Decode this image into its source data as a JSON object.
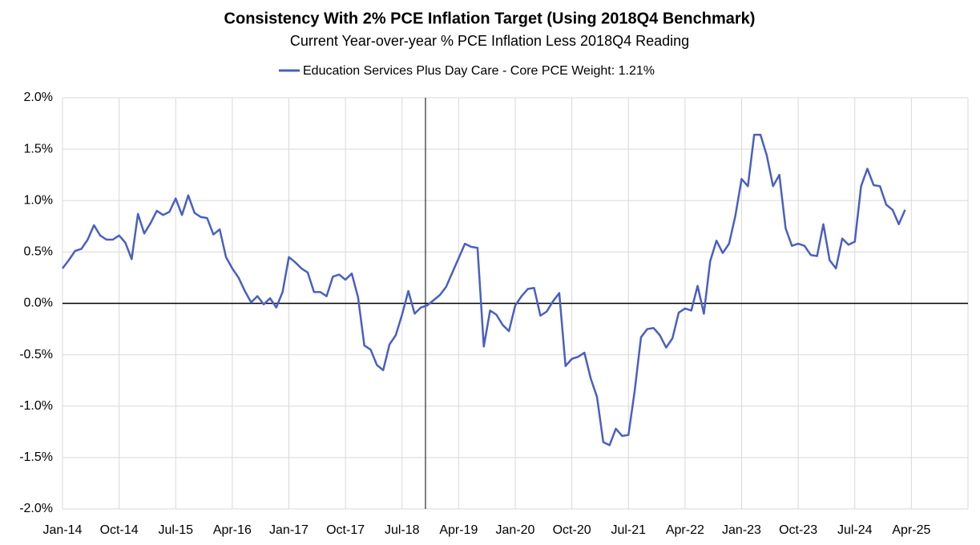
{
  "chart_data": {
    "type": "line",
    "title": "Consistency With 2% PCE Inflation Target (Using 2018Q4 Benchmark)",
    "subtitle": "Current Year-over-year % PCE Inflation Less 2018Q4 Reading",
    "categories": [
      "Jan-14",
      null,
      null,
      null,
      null,
      null,
      null,
      null,
      null,
      "Oct-14",
      null,
      null,
      null,
      null,
      null,
      null,
      null,
      null,
      "Jul-15",
      null,
      null,
      null,
      null,
      null,
      null,
      null,
      null,
      "Apr-16",
      null,
      null,
      null,
      null,
      null,
      null,
      null,
      null,
      "Jan-17",
      null,
      null,
      null,
      null,
      null,
      null,
      null,
      null,
      "Oct-17",
      null,
      null,
      null,
      null,
      null,
      null,
      null,
      null,
      "Jul-18",
      null,
      null,
      null,
      null,
      null,
      null,
      null,
      null,
      "Apr-19",
      null,
      null,
      null,
      null,
      null,
      null,
      null,
      null,
      "Jan-20",
      null,
      null,
      null,
      null,
      null,
      null,
      null,
      null,
      "Oct-20",
      null,
      null,
      null,
      null,
      null,
      null,
      null,
      null,
      "Jul-21",
      null,
      null,
      null,
      null,
      null,
      null,
      null,
      null,
      "Apr-22",
      null,
      null,
      null,
      null,
      null,
      null,
      null,
      null,
      "Jan-23",
      null,
      null,
      null,
      null,
      null,
      null,
      null,
      null,
      "Oct-23",
      null,
      null,
      null,
      null,
      null,
      null,
      null,
      null,
      "Jul-24",
      null,
      null,
      null,
      null,
      null,
      null,
      null,
      null,
      "Apr-25",
      null,
      null,
      null,
      null,
      null,
      null,
      null,
      null
    ],
    "series": [
      {
        "name": "Education Services Plus Day Care  - Core PCE Weight: 1.21%",
        "color": "#4a5fc1",
        "values": [
          0.34,
          0.42,
          0.51,
          0.53,
          0.62,
          0.76,
          0.66,
          0.62,
          0.62,
          0.66,
          0.59,
          0.43,
          0.87,
          0.68,
          0.78,
          0.9,
          0.86,
          0.89,
          1.02,
          0.86,
          1.05,
          0.88,
          0.84,
          0.83,
          0.67,
          0.72,
          0.45,
          0.34,
          0.25,
          0.12,
          0.01,
          0.07,
          -0.01,
          0.05,
          -0.04,
          0.11,
          0.45,
          0.4,
          0.34,
          0.3,
          0.11,
          0.11,
          0.07,
          0.26,
          0.28,
          0.23,
          0.29,
          0.06,
          -0.41,
          -0.45,
          -0.6,
          -0.65,
          -0.4,
          -0.31,
          -0.11,
          0.12,
          -0.1,
          -0.04,
          -0.02,
          0.03,
          0.08,
          0.16,
          0.3,
          0.44,
          0.58,
          0.55,
          0.54,
          -0.42,
          -0.07,
          -0.11,
          -0.21,
          -0.27,
          -0.02,
          0.07,
          0.14,
          0.15,
          -0.12,
          -0.08,
          0.02,
          0.1,
          -0.61,
          -0.54,
          -0.52,
          -0.48,
          -0.73,
          -0.91,
          -1.35,
          -1.38,
          -1.22,
          -1.29,
          -1.28,
          -0.85,
          -0.33,
          -0.25,
          -0.24,
          -0.31,
          -0.43,
          -0.34,
          -0.09,
          -0.05,
          -0.07,
          0.17,
          -0.1,
          0.41,
          0.61,
          0.49,
          0.58,
          0.85,
          1.21,
          1.14,
          1.64,
          1.64,
          1.44,
          1.14,
          1.25,
          0.73,
          0.56,
          0.58,
          0.56,
          0.47,
          0.46,
          0.77,
          0.42,
          0.34,
          0.63,
          0.57,
          0.6,
          1.14,
          1.31,
          1.15,
          1.14,
          0.96,
          0.91,
          0.77,
          0.91,
          null,
          null,
          null,
          null,
          null,
          null,
          null,
          null,
          null
        ]
      }
    ],
    "ylim": [
      -2,
      2
    ],
    "yticks": [
      {
        "value": -2,
        "label": "-2.0%"
      },
      {
        "value": -1.5,
        "label": "-1.5%"
      },
      {
        "value": -1,
        "label": "-1.0%"
      },
      {
        "value": -0.5,
        "label": "-0.5%"
      },
      {
        "value": 0,
        "label": "0.0%"
      },
      {
        "value": 0.5,
        "label": "0.5%"
      },
      {
        "value": 1,
        "label": "1.0%"
      },
      {
        "value": 1.5,
        "label": "1.5%"
      },
      {
        "value": 2,
        "label": "2.0%"
      }
    ],
    "grid": true
  }
}
